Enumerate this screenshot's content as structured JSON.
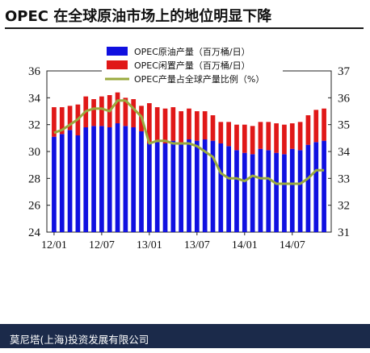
{
  "title": "OPEC 在全球原油市场上的地位明显下降",
  "footer": "莫尼塔(上海)投资发展有限公司",
  "colors": {
    "blue": "#1010e0",
    "red": "#e01818",
    "olive": "#9aaa3e",
    "footer_bg": "#1b2a4a"
  },
  "chart_data": {
    "type": "bar",
    "x_ticks": [
      "12/01",
      "12/07",
      "13/01",
      "13/07",
      "14/01",
      "14/07"
    ],
    "y_left": {
      "lim": [
        24,
        36
      ],
      "ticks": [
        "24",
        "26",
        "28",
        "30",
        "32",
        "34",
        "36"
      ]
    },
    "y_right": {
      "lim": [
        31,
        37
      ],
      "ticks": [
        "31",
        "32",
        "33",
        "34",
        "35",
        "36",
        "37"
      ]
    },
    "categories": [
      "12/01",
      "12/02",
      "12/03",
      "12/04",
      "12/05",
      "12/06",
      "12/07",
      "12/08",
      "12/09",
      "12/10",
      "12/11",
      "12/12",
      "13/01",
      "13/02",
      "13/03",
      "13/04",
      "13/05",
      "13/06",
      "13/07",
      "13/08",
      "13/09",
      "13/10",
      "13/11",
      "13/12",
      "14/01",
      "14/02",
      "14/03",
      "14/04",
      "14/05",
      "14/06",
      "14/07",
      "14/08",
      "14/09",
      "14/10",
      "14/11"
    ],
    "series": [
      {
        "name": "OPEC原油产量（百万桶/日）",
        "type": "bar",
        "axis": "left",
        "values": [
          31.1,
          31.3,
          31.6,
          31.2,
          31.8,
          31.9,
          31.9,
          31.8,
          32.1,
          31.9,
          31.8,
          31.5,
          30.6,
          30.7,
          30.6,
          30.8,
          30.6,
          30.9,
          30.8,
          30.9,
          30.8,
          30.6,
          30.4,
          30.1,
          29.9,
          29.8,
          30.2,
          30.1,
          29.9,
          29.8,
          30.2,
          30.1,
          30.5,
          30.7,
          30.8
        ]
      },
      {
        "name": "OPEC闲置产量（百万桶/日）",
        "type": "stacked_bar",
        "axis": "left",
        "values": [
          2.2,
          2.0,
          1.8,
          2.3,
          2.3,
          2.0,
          2.2,
          2.4,
          2.3,
          2.1,
          2.1,
          1.9,
          3.0,
          2.6,
          2.6,
          2.5,
          2.4,
          2.3,
          2.2,
          2.1,
          1.9,
          1.6,
          1.8,
          1.9,
          2.1,
          2.1,
          2.0,
          2.1,
          2.2,
          2.2,
          1.9,
          2.1,
          2.2,
          2.4,
          2.4
        ]
      },
      {
        "name": "OPEC产量占全球产量比例（%）",
        "type": "line",
        "axis": "right",
        "values": [
          34.7,
          34.8,
          35.0,
          35.2,
          35.5,
          35.6,
          35.6,
          35.5,
          35.9,
          35.9,
          35.6,
          35.3,
          34.3,
          34.4,
          34.4,
          34.3,
          34.3,
          34.3,
          34.2,
          34.0,
          33.8,
          33.2,
          33.0,
          33.0,
          32.9,
          33.1,
          33.0,
          33.0,
          32.8,
          32.8,
          32.8,
          32.8,
          33.0,
          33.3,
          33.3
        ]
      }
    ],
    "legend_position": "top-right",
    "grid": false
  }
}
